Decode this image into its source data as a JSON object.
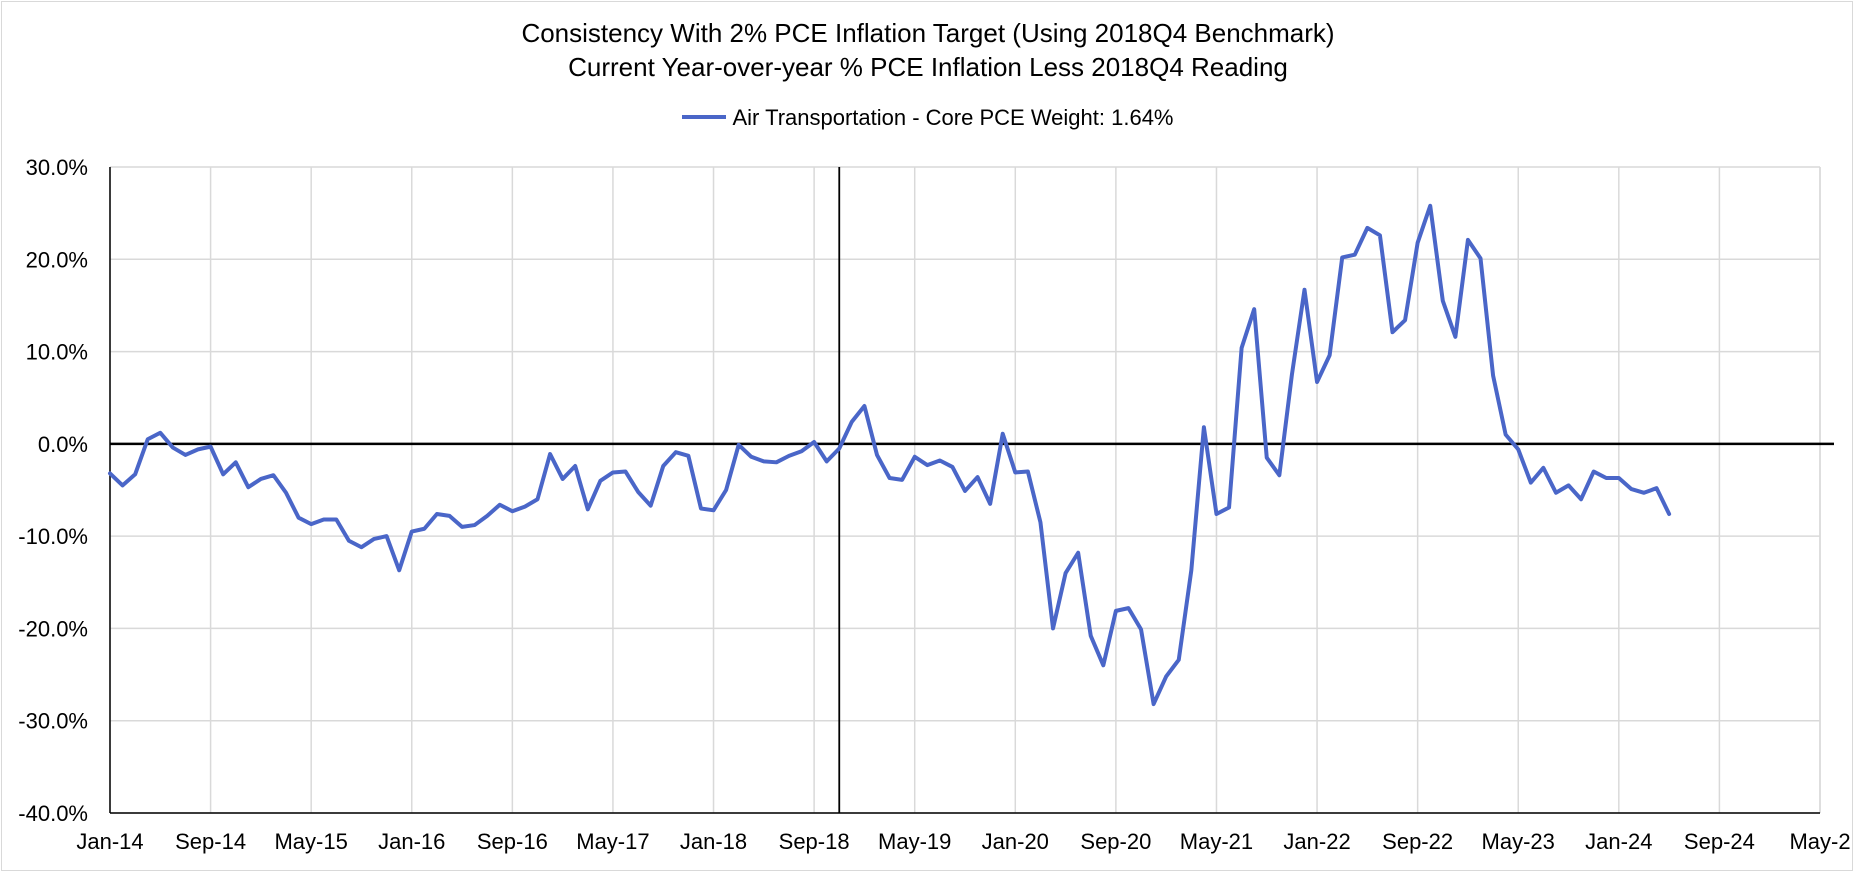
{
  "chart_data": {
    "type": "line",
    "title_line1": "Consistency With 2% PCE Inflation Target (Using 2018Q4 Benchmark)",
    "title_line2": "Current Year-over-year % PCE Inflation Less 2018Q4 Reading",
    "legend_label": "Air Transportation - Core PCE Weight: 1.64%",
    "series_color": "#4a66c8",
    "ylim": [
      -40,
      30
    ],
    "y_ticks": [
      30,
      20,
      10,
      0,
      -10,
      -20,
      -30,
      -40
    ],
    "y_tick_labels": [
      "30.0%",
      "20.0%",
      "10.0%",
      "0.0%",
      "-10.0%",
      "-20.0%",
      "-30.0%",
      "-40.0%"
    ],
    "x_start": "Jan-14",
    "x_months_span": 136,
    "x_tick_labels": [
      "Jan-14",
      "Sep-14",
      "May-15",
      "Jan-16",
      "Sep-16",
      "May-17",
      "Jan-18",
      "Sep-18",
      "May-19",
      "Jan-20",
      "Sep-20",
      "May-21",
      "Jan-22",
      "Sep-22",
      "May-23",
      "Jan-24",
      "Sep-24",
      "May-2"
    ],
    "reference_line_month_index": 58,
    "series": [
      {
        "name": "Air Transportation - Core PCE Weight: 1.64%",
        "start": "Jan-14",
        "values": [
          -3.2,
          -4.5,
          -3.3,
          0.5,
          1.2,
          -0.4,
          -1.2,
          -0.6,
          -0.3,
          -3.3,
          -2.0,
          -4.7,
          -3.8,
          -3.4,
          -5.3,
          -8.0,
          -8.7,
          -8.2,
          -8.2,
          -10.5,
          -11.2,
          -10.3,
          -10.0,
          -13.7,
          -9.5,
          -9.2,
          -7.6,
          -7.8,
          -9.0,
          -8.8,
          -7.8,
          -6.6,
          -7.3,
          -6.8,
          -6.0,
          -1.1,
          -3.8,
          -2.4,
          -7.1,
          -4.0,
          -3.1,
          -3.0,
          -5.2,
          -6.7,
          -2.4,
          -0.9,
          -1.3,
          -7.0,
          -7.2,
          -5.0,
          -0.1,
          -1.4,
          -1.9,
          -2.0,
          -1.3,
          -0.8,
          0.2,
          -1.9,
          -0.5,
          2.4,
          4.1,
          -1.2,
          -3.7,
          -3.9,
          -1.4,
          -2.3,
          -1.8,
          -2.5,
          -5.1,
          -3.6,
          -6.5,
          1.1,
          -3.1,
          -3.0,
          -8.5,
          -20.0,
          -14.0,
          -11.8,
          -20.8,
          -24.0,
          -18.1,
          -17.8,
          -20.1,
          -28.2,
          -25.2,
          -23.4,
          -13.7,
          1.8,
          -7.6,
          -6.9,
          10.4,
          14.6,
          -1.5,
          -3.4,
          7.5,
          16.7,
          6.7,
          9.6,
          20.2,
          20.5,
          23.4,
          22.6,
          12.1,
          13.4,
          21.8,
          25.8,
          15.5,
          11.6,
          22.1,
          20.1,
          7.4,
          1.0,
          -0.6,
          -4.2,
          -2.6,
          -5.3,
          -4.5,
          -6.0,
          -3.0,
          -3.7,
          -3.7,
          -4.9,
          -5.3,
          -4.8,
          -7.6
        ]
      }
    ]
  }
}
